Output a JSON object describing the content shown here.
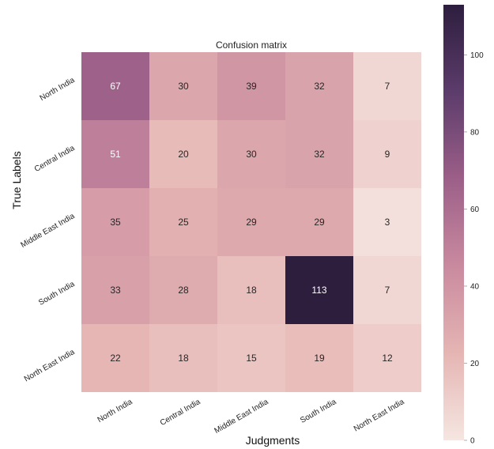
{
  "chart_data": {
    "type": "heatmap",
    "title": "Confusion matrix",
    "xlabel": "Judgments",
    "ylabel": "True Labels",
    "x_categories": [
      "North India",
      "Central India",
      "Middle East India",
      "South India",
      "North East India"
    ],
    "y_categories": [
      "North India",
      "Central India",
      "Middle East India",
      "South India",
      "North East India"
    ],
    "values": [
      [
        67,
        30,
        39,
        32,
        7
      ],
      [
        51,
        20,
        30,
        32,
        9
      ],
      [
        35,
        25,
        29,
        29,
        3
      ],
      [
        33,
        28,
        18,
        113,
        7
      ],
      [
        22,
        18,
        15,
        19,
        12
      ]
    ],
    "colorbar": {
      "range": [
        0,
        113
      ],
      "ticks": [
        0,
        20,
        40,
        60,
        80,
        100
      ],
      "colors": [
        "#f5e6e1",
        "#e5b5b3",
        "#c98a9f",
        "#9c5f88",
        "#5c3c6b",
        "#2d1e3e"
      ]
    },
    "grid": false
  }
}
